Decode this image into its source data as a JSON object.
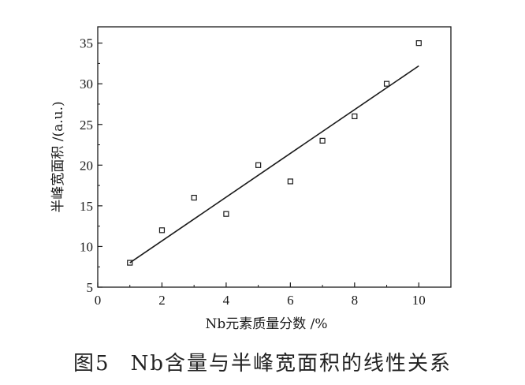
{
  "figure": {
    "caption_number": "图5",
    "caption_text": "Nb含量与半峰宽面积的线性关系"
  },
  "chart_data": {
    "type": "scatter",
    "xlabel": "Nb元素质量分数 /%",
    "ylabel": "半峰宽面积 /(a.u.)",
    "xlim": [
      0,
      11
    ],
    "ylim": [
      5,
      37
    ],
    "xticks": [
      0,
      2,
      4,
      6,
      8,
      10
    ],
    "yticks": [
      5,
      10,
      15,
      20,
      25,
      30,
      35
    ],
    "grid": false,
    "points": [
      {
        "x": 1,
        "y": 8
      },
      {
        "x": 2,
        "y": 12
      },
      {
        "x": 3,
        "y": 16
      },
      {
        "x": 4,
        "y": 14
      },
      {
        "x": 5,
        "y": 20
      },
      {
        "x": 6,
        "y": 18
      },
      {
        "x": 7,
        "y": 23
      },
      {
        "x": 8,
        "y": 26
      },
      {
        "x": 9,
        "y": 30
      },
      {
        "x": 10,
        "y": 35
      }
    ],
    "fit_line": {
      "x": [
        1,
        10
      ],
      "y": [
        8.0,
        32.2
      ]
    }
  }
}
